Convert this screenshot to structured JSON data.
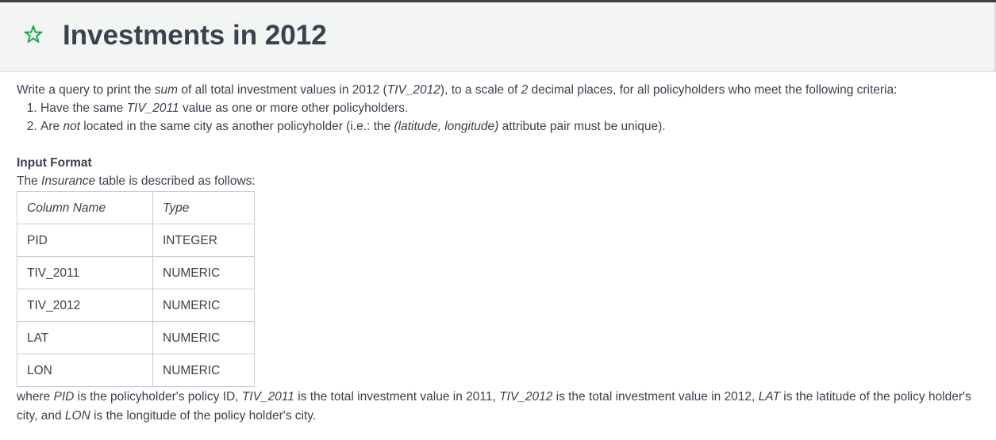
{
  "header": {
    "title": "Investments in 2012",
    "star_icon": "star-outline-icon",
    "star_color": "#1ba94c"
  },
  "intro": {
    "p1": "Write a query to print the ",
    "p2": "sum",
    "p3": " of all total investment values in 2012 (",
    "p4": "TIV_2012",
    "p5": "), to a scale of ",
    "p6": "2",
    "p7": " decimal places, for all policyholders who meet the following criteria:"
  },
  "criteria": {
    "c1_a": "Have the same ",
    "c1_b": "TIV_2011",
    "c1_c": " value as one or more other policyholders.",
    "c2_a": "Are ",
    "c2_b": "not",
    "c2_c": " located in the same city as another policyholder (i.e.: the ",
    "c2_d": "(latitude, longitude)",
    "c2_e": " attribute pair must be unique)."
  },
  "input_format": {
    "heading": "Input Format",
    "desc_a": "The ",
    "desc_b": "Insurance",
    "desc_c": " table is described as follows:"
  },
  "table": {
    "headers": [
      "Column Name",
      "Type"
    ],
    "rows": [
      [
        "PID",
        "INTEGER"
      ],
      [
        "TIV_2011",
        "NUMERIC"
      ],
      [
        "TIV_2012",
        "NUMERIC"
      ],
      [
        "LAT",
        "NUMERIC"
      ],
      [
        "LON",
        "NUMERIC"
      ]
    ]
  },
  "footer": {
    "f1": "where ",
    "f2": "PID",
    "f3": " is the policyholder's policy ID, ",
    "f4": "TIV_2011",
    "f5": " is the total investment value in 2011, ",
    "f6": "TIV_2012",
    "f7": " is the total investment value in 2012, ",
    "f8": "LAT",
    "f9": " is the latitude of the policy holder's city, and ",
    "f10": "LON",
    "f11": " is the longitude of the policy holder's city."
  }
}
